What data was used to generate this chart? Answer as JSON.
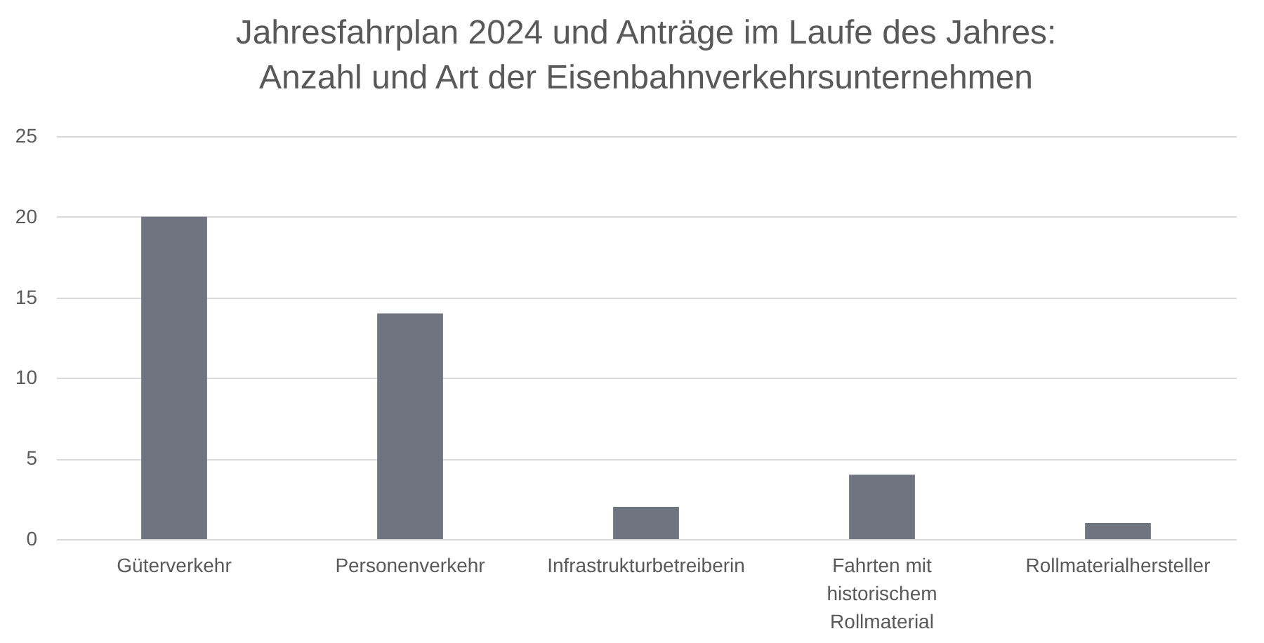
{
  "chart_data": {
    "type": "bar",
    "title": "Jahresfahrplan 2024 und Anträge im Laufe des Jahres:\nAnzahl und Art der Eisenbahnverkehrsunternehmen",
    "categories": [
      "Güterverkehr",
      "Personenverkehr",
      "Infrastrukturbetreiberin",
      "Fahrten mit historischem Rollmaterial",
      "Rollmaterialhersteller"
    ],
    "values": [
      20,
      14,
      2,
      4,
      1
    ],
    "color": "#6e7580",
    "ylim": [
      0,
      25
    ],
    "yticks": [
      0,
      5,
      10,
      15,
      20,
      25
    ],
    "grid": "y"
  }
}
